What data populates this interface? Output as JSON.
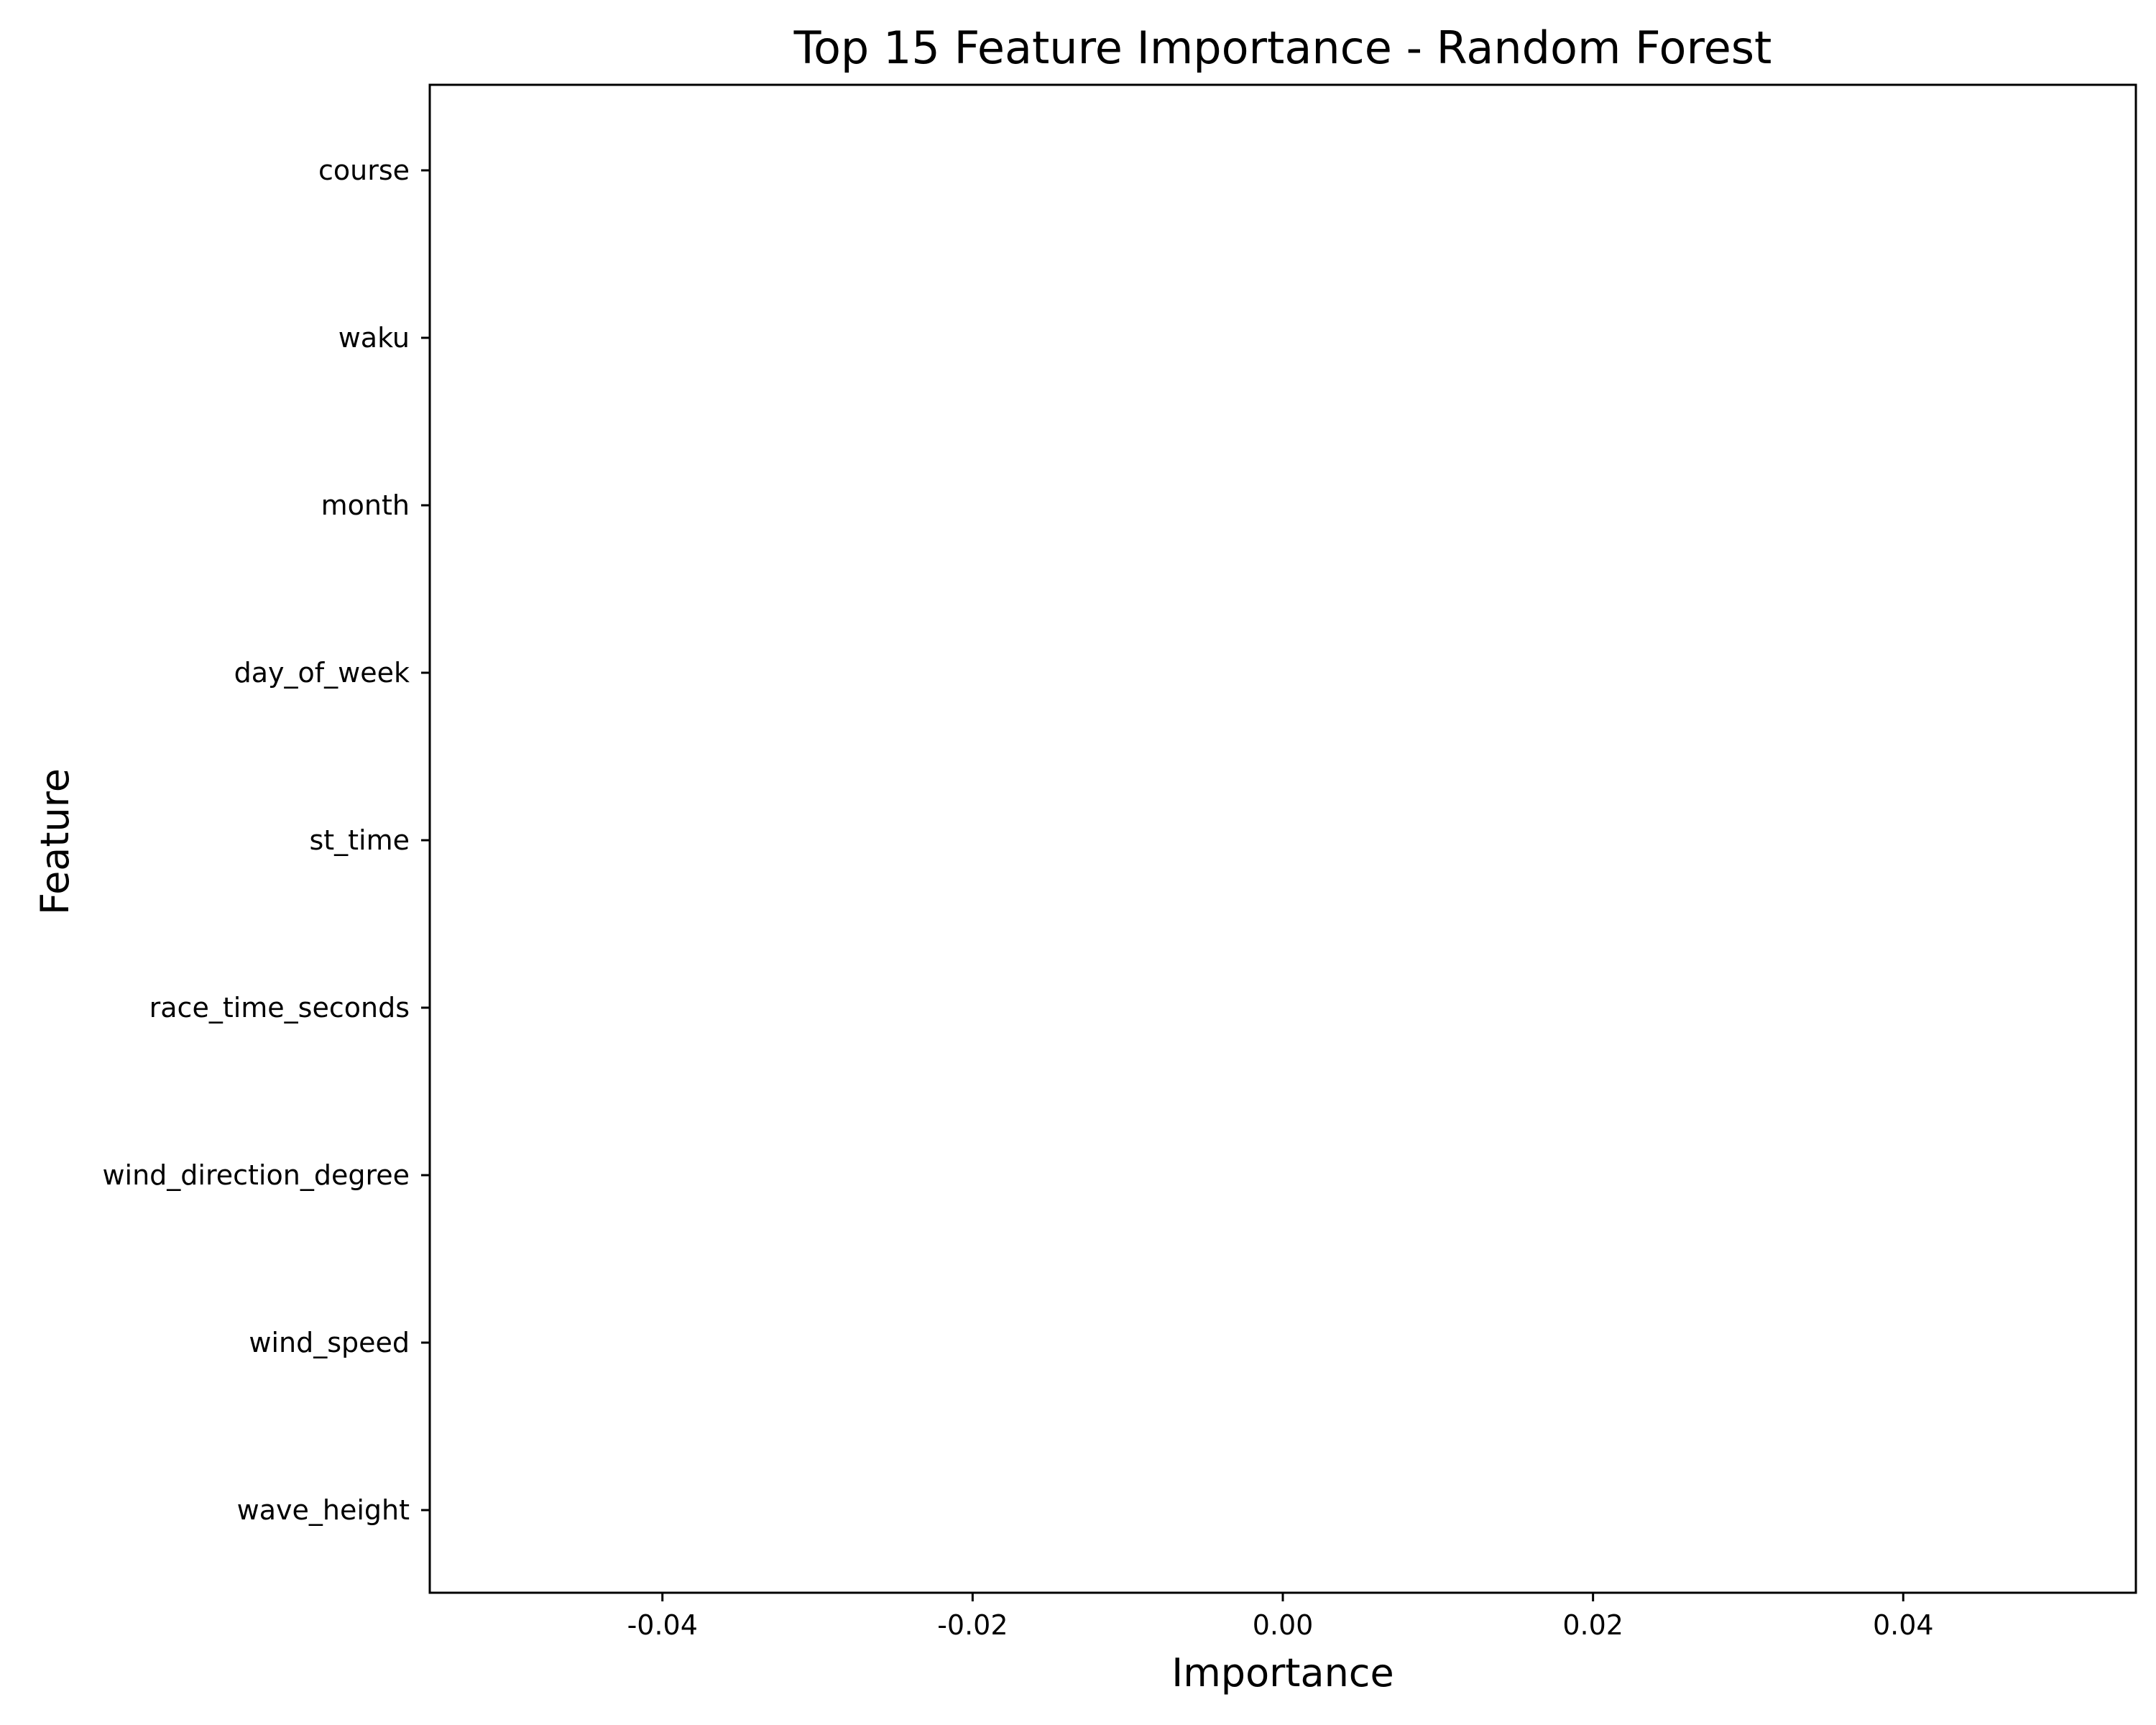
{
  "chart_data": {
    "type": "bar",
    "orientation": "horizontal",
    "title": "Top 15 Feature Importance - Random Forest",
    "xlabel": "Importance",
    "ylabel": "Feature",
    "categories": [
      "course",
      "waku",
      "month",
      "day_of_week",
      "st_time",
      "race_time_seconds",
      "wind_direction_degree",
      "wind_speed",
      "wave_height"
    ],
    "values": [
      0,
      0,
      0,
      0,
      0,
      0,
      0,
      0,
      0
    ],
    "xlim": [
      -0.055,
      0.055
    ],
    "xticks": [
      -0.04,
      -0.02,
      0.0,
      0.02,
      0.04
    ],
    "xtick_labels": [
      "-0.04",
      "-0.02",
      "0.00",
      "0.02",
      "0.04"
    ],
    "grid": false,
    "colors": {
      "frame": "#000000",
      "bar": "#5b9bd5"
    }
  }
}
